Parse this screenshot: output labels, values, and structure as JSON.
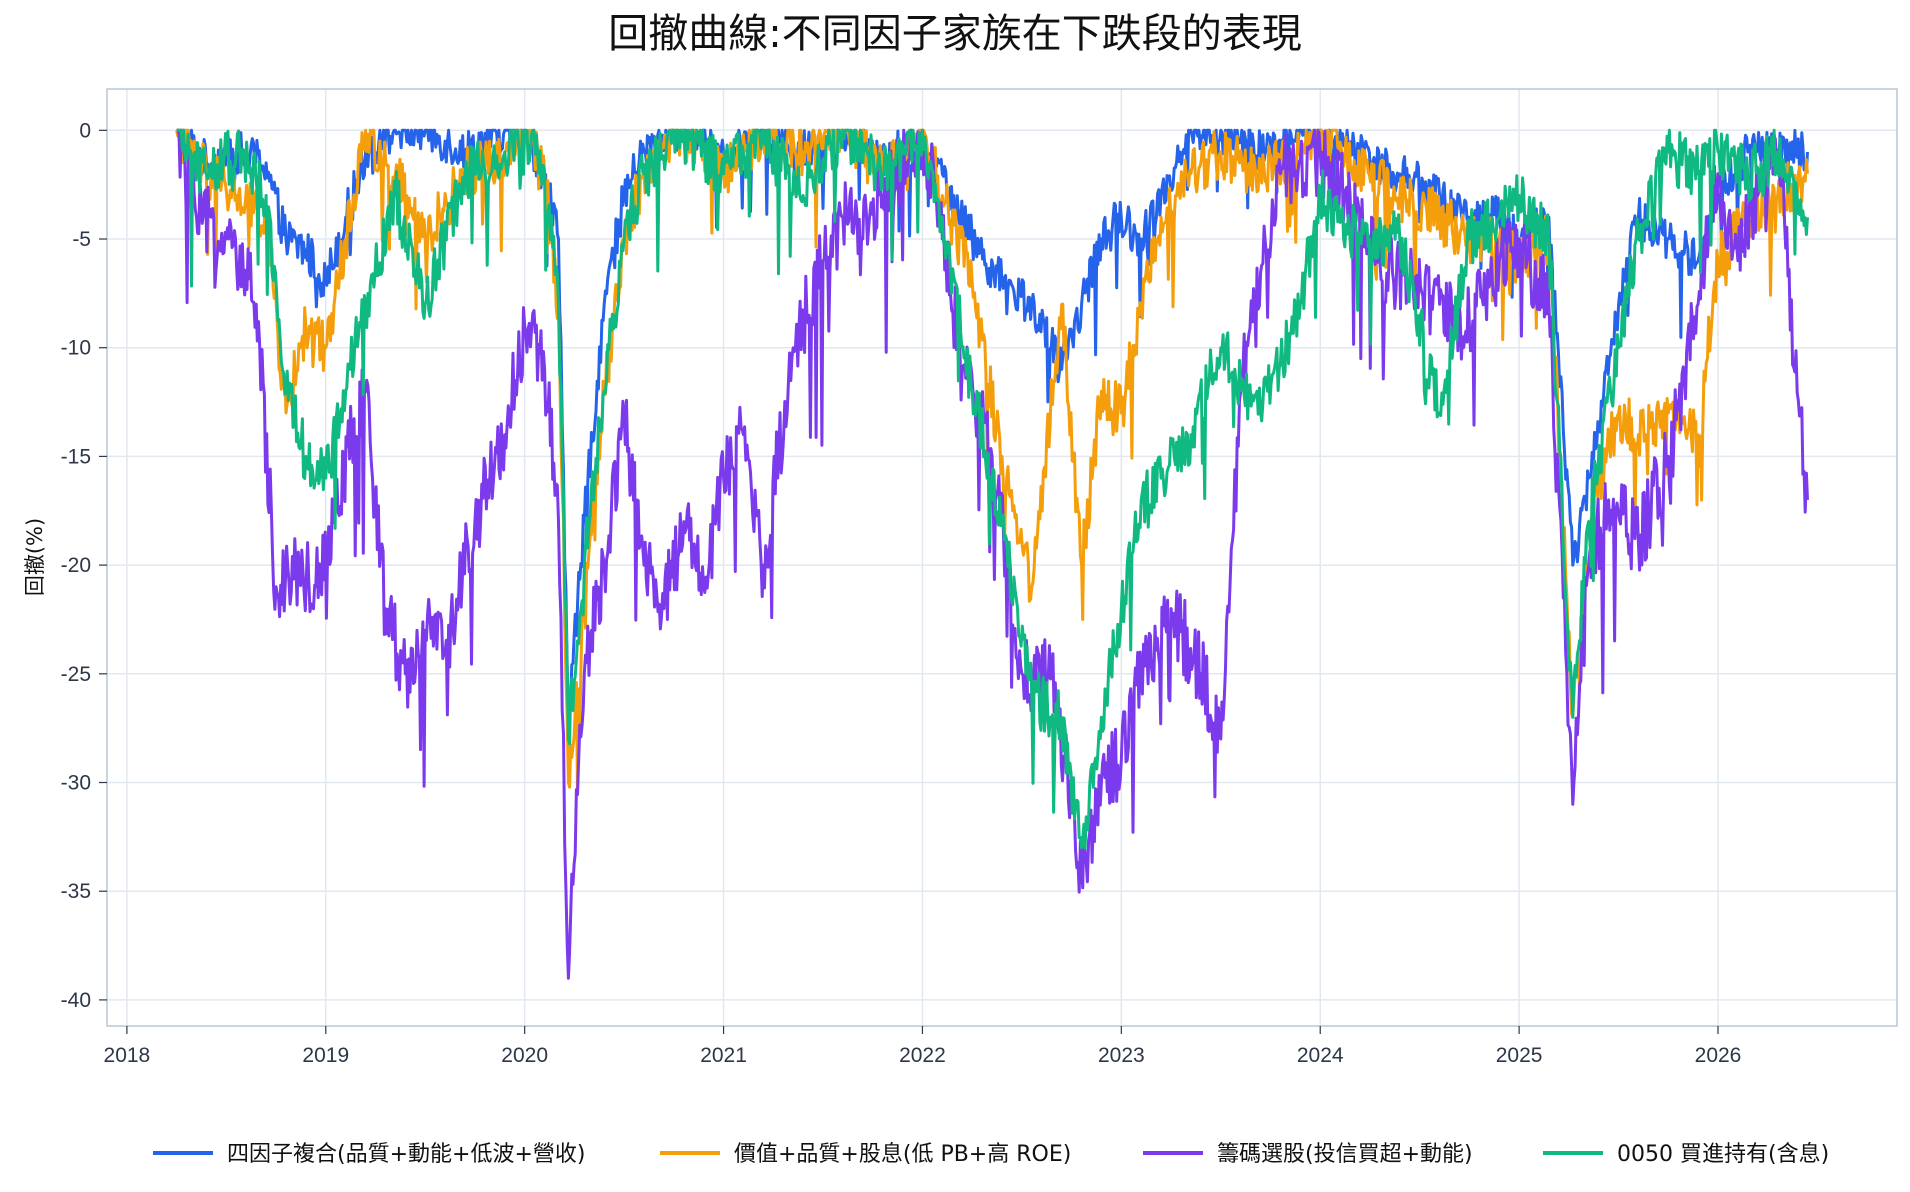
{
  "chart_data": {
    "type": "line",
    "title": "回撤曲線:不同因子家族在下跌段的表現",
    "xlabel": "",
    "ylabel": "回撤(%)",
    "x_ticks": [
      "2018",
      "2019",
      "2020",
      "2021",
      "2022",
      "2023",
      "2024",
      "2025",
      "2026"
    ],
    "y_ticks": [
      0,
      -5,
      -10,
      -15,
      -20,
      -25,
      -30,
      -35,
      -40
    ],
    "xlim": [
      2017.9,
      2026.9
    ],
    "ylim": [
      -41.2,
      1.9
    ],
    "grid": true,
    "legend_position": "bottom",
    "series": [
      {
        "name": "四因子複合(品質+動能+低波+營收)",
        "color": "#2563eb",
        "x": [
          2018.25,
          2018.4,
          2018.55,
          2018.7,
          2018.8,
          2018.9,
          2019.0,
          2019.1,
          2019.2,
          2019.35,
          2019.5,
          2019.7,
          2019.9,
          2020.0,
          2020.1,
          2020.17,
          2020.22,
          2020.3,
          2020.4,
          2020.5,
          2020.6,
          2020.75,
          2020.9,
          2021.0,
          2021.2,
          2021.4,
          2021.6,
          2021.8,
          2022.0,
          2022.1,
          2022.25,
          2022.4,
          2022.55,
          2022.7,
          2022.8,
          2022.9,
          2023.0,
          2023.1,
          2023.2,
          2023.35,
          2023.5,
          2023.7,
          2023.9,
          2024.0,
          2024.2,
          2024.4,
          2024.6,
          2024.75,
          2024.9,
          2025.0,
          2025.15,
          2025.27,
          2025.35,
          2025.5,
          2025.6,
          2025.75,
          2025.9,
          2026.0,
          2026.15,
          2026.3,
          2026.45
        ],
        "values": [
          0,
          -1.5,
          -1,
          -1.5,
          -5,
          -5.5,
          -7,
          -4,
          -1,
          0,
          0,
          -1,
          0,
          0,
          -2,
          -5,
          -27,
          -18,
          -8,
          -3,
          -1,
          0,
          0,
          -1,
          0,
          -1,
          0,
          -1,
          -1,
          -2,
          -5,
          -7,
          -8,
          -11,
          -8,
          -5,
          -4,
          -5,
          -3,
          0,
          0,
          -1,
          0,
          0,
          -1,
          -2,
          -3,
          -4,
          -4,
          -5,
          -4,
          -20,
          -16,
          -8,
          -4,
          -5,
          -6,
          -3,
          -1,
          -1,
          -1
        ]
      },
      {
        "name": "價值+品質+股息(低 PB+高 ROE)",
        "color": "#f59e0b",
        "x": [
          2018.25,
          2018.4,
          2018.55,
          2018.7,
          2018.8,
          2018.9,
          2019.0,
          2019.1,
          2019.2,
          2019.35,
          2019.5,
          2019.7,
          2019.9,
          2020.0,
          2020.1,
          2020.17,
          2020.22,
          2020.3,
          2020.4,
          2020.5,
          2020.6,
          2020.75,
          2020.9,
          2021.0,
          2021.2,
          2021.4,
          2021.6,
          2021.8,
          2022.0,
          2022.1,
          2022.25,
          2022.4,
          2022.55,
          2022.7,
          2022.8,
          2022.9,
          2023.0,
          2023.1,
          2023.2,
          2023.35,
          2023.5,
          2023.7,
          2023.9,
          2024.0,
          2024.2,
          2024.4,
          2024.6,
          2024.75,
          2024.9,
          2025.0,
          2025.15,
          2025.27,
          2025.35,
          2025.5,
          2025.6,
          2025.75,
          2025.9,
          2026.0,
          2026.15,
          2026.3,
          2026.45
        ],
        "values": [
          0,
          -2,
          -3,
          -4,
          -13,
          -9,
          -10,
          -5,
          0,
          -2,
          -5,
          -2,
          -1,
          0,
          -2,
          -8,
          -30,
          -22,
          -12,
          -5,
          -2,
          0,
          -1,
          -2,
          0,
          -1,
          0,
          -2,
          0,
          -3,
          -7,
          -15,
          -21,
          -8,
          -20,
          -12,
          -13,
          -8,
          -4,
          -2,
          -1,
          -2,
          -1,
          0,
          -2,
          -3,
          -4,
          -5,
          -5,
          -6,
          -5,
          -27,
          -18,
          -13,
          -14,
          -13,
          -14,
          -6,
          -4,
          -3,
          -2
        ]
      },
      {
        "name": "籌碼選股(投信買超+動能)",
        "color": "#7c3aed",
        "x": [
          2018.25,
          2018.35,
          2018.5,
          2018.65,
          2018.75,
          2018.85,
          2018.95,
          2019.05,
          2019.2,
          2019.3,
          2019.4,
          2019.5,
          2019.6,
          2019.75,
          2019.9,
          2020.0,
          2020.1,
          2020.17,
          2020.22,
          2020.3,
          2020.4,
          2020.5,
          2020.6,
          2020.7,
          2020.8,
          2020.9,
          2021.0,
          2021.1,
          2021.2,
          2021.35,
          2021.5,
          2021.6,
          2021.7,
          2021.8,
          2022.0,
          2022.1,
          2022.2,
          2022.35,
          2022.5,
          2022.65,
          2022.8,
          2022.9,
          2023.0,
          2023.1,
          2023.25,
          2023.4,
          2023.5,
          2023.6,
          2023.8,
          2024.0,
          2024.15,
          2024.3,
          2024.45,
          2024.6,
          2024.75,
          2024.9,
          2025.0,
          2025.15,
          2025.27,
          2025.35,
          2025.45,
          2025.6,
          2025.75,
          2025.9,
          2026.0,
          2026.1,
          2026.2,
          2026.3,
          2026.45
        ],
        "values": [
          0,
          -4,
          -5,
          -8,
          -21,
          -20,
          -21,
          -17,
          -12,
          -22,
          -25,
          -23,
          -24,
          -18,
          -14,
          -9,
          -11,
          -18,
          -39,
          -25,
          -20,
          -13,
          -20,
          -22,
          -18,
          -21,
          -16,
          -14,
          -20,
          -10,
          -6,
          -4,
          -5,
          -3,
          0,
          -5,
          -11,
          -15,
          -25,
          -25,
          -34,
          -30,
          -29,
          -25,
          -22,
          -25,
          -28,
          -12,
          -2,
          -1,
          -3,
          -6,
          -7,
          -8,
          -9,
          -6,
          -5,
          -8,
          -31,
          -20,
          -17,
          -19,
          -15,
          -8,
          -2,
          -6,
          -3,
          -1,
          -17
        ]
      },
      {
        "name": "0050 買進持有(含息)",
        "color": "#10b981",
        "x": [
          2018.25,
          2018.4,
          2018.55,
          2018.7,
          2018.8,
          2018.9,
          2019.0,
          2019.1,
          2019.2,
          2019.35,
          2019.5,
          2019.7,
          2019.9,
          2020.0,
          2020.1,
          2020.17,
          2020.22,
          2020.3,
          2020.4,
          2020.5,
          2020.6,
          2020.75,
          2020.9,
          2021.0,
          2021.2,
          2021.4,
          2021.6,
          2021.8,
          2022.0,
          2022.1,
          2022.25,
          2022.4,
          2022.55,
          2022.7,
          2022.8,
          2022.9,
          2023.0,
          2023.1,
          2023.2,
          2023.35,
          2023.5,
          2023.7,
          2023.9,
          2024.0,
          2024.2,
          2024.4,
          2024.6,
          2024.75,
          2024.9,
          2025.0,
          2025.15,
          2025.27,
          2025.35,
          2025.5,
          2025.6,
          2025.75,
          2025.9,
          2026.0,
          2026.15,
          2026.3,
          2026.45
        ],
        "values": [
          0,
          -2,
          -1,
          -3,
          -12,
          -15,
          -16,
          -12,
          -8,
          -3,
          -8,
          -2,
          -1,
          0,
          -2,
          -8,
          -28,
          -20,
          -12,
          -5,
          -2,
          0,
          -1,
          -2,
          0,
          -3,
          0,
          -2,
          0,
          -4,
          -12,
          -18,
          -26,
          -27,
          -33,
          -27,
          -22,
          -17,
          -16,
          -14,
          -10,
          -13,
          -8,
          -3,
          -5,
          -5,
          -13,
          -5,
          -4,
          -3,
          -5,
          -27,
          -18,
          -10,
          -5,
          -1,
          -2,
          -1,
          -2,
          -1,
          -4
        ]
      }
    ]
  }
}
